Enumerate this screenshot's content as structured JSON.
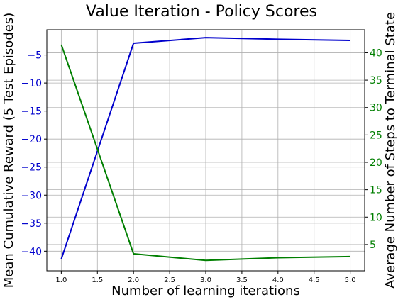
{
  "chart_data": {
    "type": "line",
    "title": "Value Iteration - Policy Scores",
    "xlabel": "Number of learning iterations",
    "ylabel_left": "Mean Cumulative Reward (5 Test Episodes)",
    "ylabel_right": "Average Number of Steps to Terminal State",
    "x": [
      1,
      2,
      3,
      4,
      5
    ],
    "xlim": [
      0.8,
      5.2
    ],
    "ylim_left": [
      -43.5,
      -0.5
    ],
    "ylim_right": [
      0.2,
      44.2
    ],
    "x_ticks": [
      1.0,
      1.5,
      2.0,
      2.5,
      3.0,
      3.5,
      4.0,
      4.5,
      5.0
    ],
    "x_tick_labels": [
      "1.0",
      "1.5",
      "2.0",
      "2.5",
      "3.0",
      "3.5",
      "4.0",
      "4.5",
      "5.0"
    ],
    "y_left_ticks": [
      -5,
      -10,
      -15,
      -20,
      -25,
      -30,
      -35,
      -40
    ],
    "y_left_tick_labels": [
      "−5",
      "−10",
      "−15",
      "−20",
      "−25",
      "−30",
      "−35",
      "−40"
    ],
    "y_right_ticks": [
      5,
      10,
      15,
      20,
      25,
      30,
      35,
      40
    ],
    "y_right_tick_labels": [
      "5",
      "10",
      "15",
      "20",
      "25",
      "30",
      "35",
      "40"
    ],
    "grid": true,
    "series": [
      {
        "axis": "left",
        "color": "#0000cc",
        "values": [
          -41.4,
          -2.9,
          -1.9,
          -2.2,
          -2.4
        ]
      },
      {
        "axis": "right",
        "color": "#007f00",
        "values": [
          41.5,
          3.3,
          2.1,
          2.6,
          2.8
        ]
      }
    ]
  }
}
